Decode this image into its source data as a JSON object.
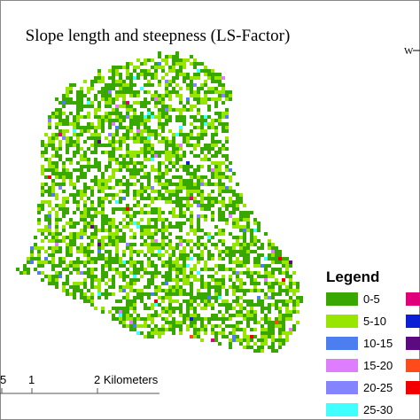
{
  "title": "Slope length and steepness (LS-Factor)",
  "north_arrow": {
    "label": "W"
  },
  "legend": {
    "title": "Legend",
    "items": [
      {
        "label": "0-5",
        "color": "#38a800"
      },
      {
        "label": "5-10",
        "color": "#98e600"
      },
      {
        "label": "10-15",
        "color": "#4c7ef0"
      },
      {
        "label": "15-20",
        "color": "#df7dff"
      },
      {
        "label": "20-25",
        "color": "#8484ff"
      },
      {
        "label": "25-30",
        "color": "#40ffff"
      },
      {
        "color": "#e0007a"
      },
      {
        "color": "#0a1fd6"
      },
      {
        "color": "#5c0a80"
      },
      {
        "color": "#ff4a1a"
      },
      {
        "color": "#f20000"
      }
    ]
  },
  "scale_bar": {
    "labels": [
      "5",
      "1",
      "2 Kilometers"
    ]
  }
}
